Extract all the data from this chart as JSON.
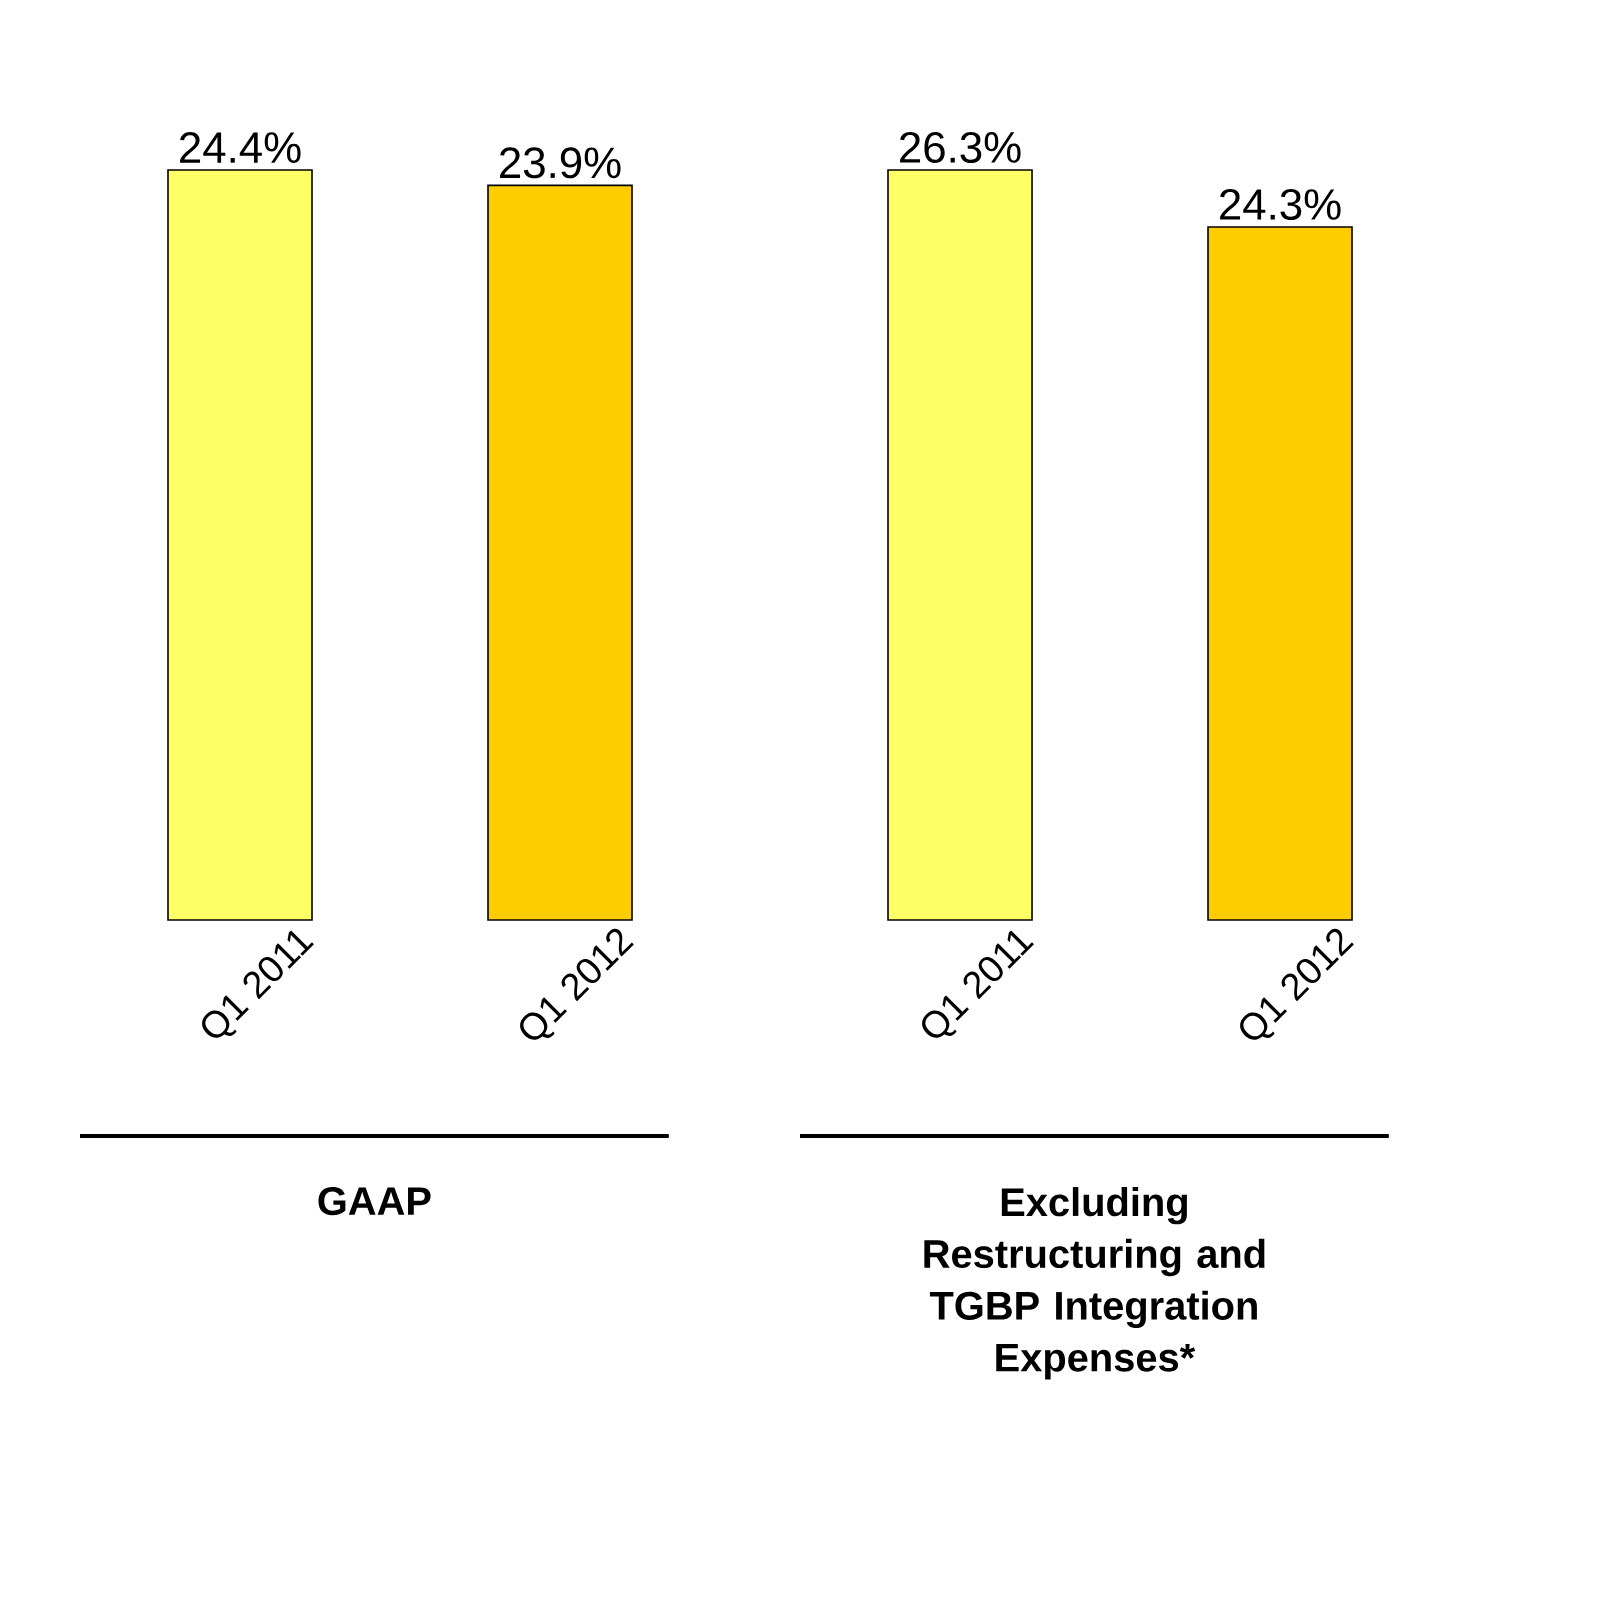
{
  "chart_data": [
    {
      "type": "bar",
      "title": "GAAP",
      "categories": [
        "Q1 2011",
        "Q1 2012"
      ],
      "values": [
        24.4,
        23.9
      ],
      "colors": [
        "#ffff66",
        "#ffcc00"
      ],
      "value_labels": [
        "24.4%",
        "23.9%"
      ]
    },
    {
      "type": "bar",
      "title": "Excluding Restructuring and TGBP Integration Expenses*",
      "categories": [
        "Q1 2011",
        "Q1 2012"
      ],
      "values": [
        26.3,
        24.3
      ],
      "colors": [
        "#ffff66",
        "#ffcc00"
      ],
      "value_labels": [
        "26.3%",
        "24.3%"
      ]
    }
  ]
}
